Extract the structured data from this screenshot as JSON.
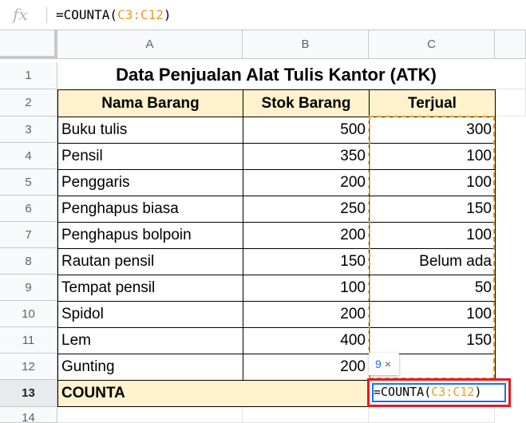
{
  "formula_bar": {
    "fx_label": "fx",
    "formula_prefix": "=COUNTA(",
    "formula_ref": "C3:C12",
    "formula_suffix": ")"
  },
  "columns": [
    "A",
    "B",
    "C"
  ],
  "rows": [
    "1",
    "2",
    "3",
    "4",
    "5",
    "6",
    "7",
    "8",
    "9",
    "10",
    "11",
    "12",
    "13",
    "14"
  ],
  "title": "Data Penjualan Alat Tulis Kantor (ATK)",
  "table": {
    "headers": [
      "Nama Barang",
      "Stok Barang",
      "Terjual"
    ],
    "data": [
      [
        "Buku tulis",
        "500",
        "300"
      ],
      [
        "Pensil",
        "350",
        "100"
      ],
      [
        "Penggaris",
        "200",
        "100"
      ],
      [
        "Penghapus biasa",
        "250",
        "150"
      ],
      [
        "Penghapus bolpoin",
        "200",
        "100"
      ],
      [
        "Rautan pensil",
        "150",
        "Belum ada"
      ],
      [
        "Tempat pensil",
        "100",
        "50"
      ],
      [
        "Spidol",
        "200",
        "100"
      ],
      [
        "Lem",
        "400",
        "150"
      ],
      [
        "Gunting",
        "200",
        ""
      ]
    ],
    "footer_label": "COUNTA"
  },
  "active_cell": {
    "prefix": "=COUNTA(",
    "ref": "C3:C12",
    "suffix": ")"
  },
  "tooltip": {
    "value": "9",
    "close": "×"
  }
}
